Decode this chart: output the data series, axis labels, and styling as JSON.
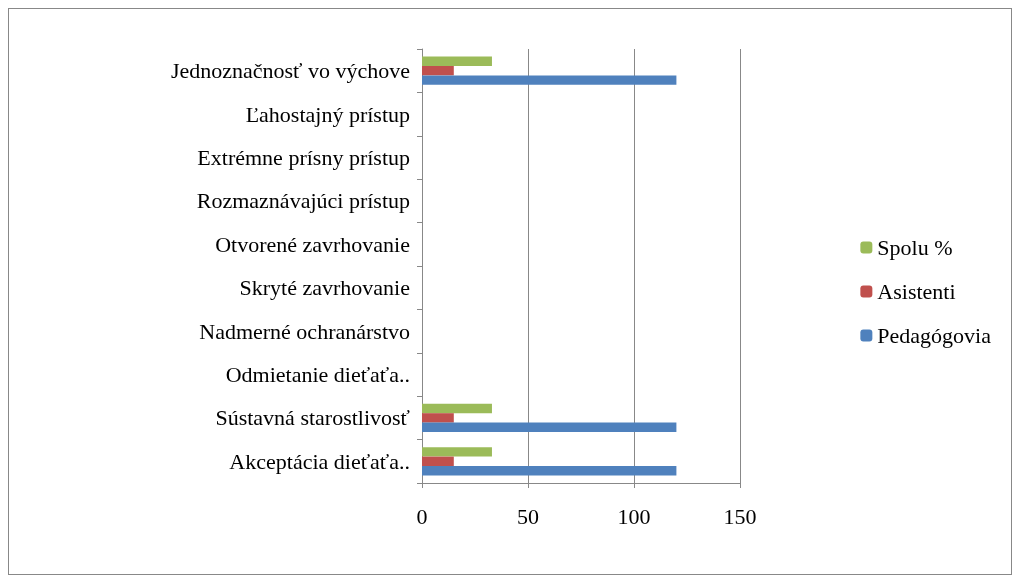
{
  "chart_data": {
    "type": "bar",
    "orientation": "horizontal",
    "categories": [
      "Jednoznačnosť vo výchove",
      "Ľahostajný prístup",
      "Extrémne prísny prístup",
      "Rozmaznávajúci prístup",
      "Otvorené zavrhovanie",
      "Skryté zavrhovanie",
      "Nadmerné ochranárstvo",
      "Odmietanie dieťaťa..",
      "Sústavná starostlivosť",
      "Akceptácia dieťaťa.."
    ],
    "series": [
      {
        "name": "Spolu %",
        "color": "#9bbb59",
        "values": [
          33,
          0,
          0,
          0,
          0,
          0,
          0,
          0,
          33,
          33
        ]
      },
      {
        "name": "Asistenti",
        "color": "#c0504d",
        "values": [
          15,
          0,
          0,
          0,
          0,
          0,
          0,
          0,
          15,
          15
        ]
      },
      {
        "name": "Pedagógovia",
        "color": "#4f81bd",
        "values": [
          120,
          0,
          0,
          0,
          0,
          0,
          0,
          0,
          120,
          120
        ]
      }
    ],
    "xlim": [
      0,
      150
    ],
    "xticks": [
      0,
      50,
      100,
      150
    ],
    "grid": "x",
    "legend": "right"
  }
}
